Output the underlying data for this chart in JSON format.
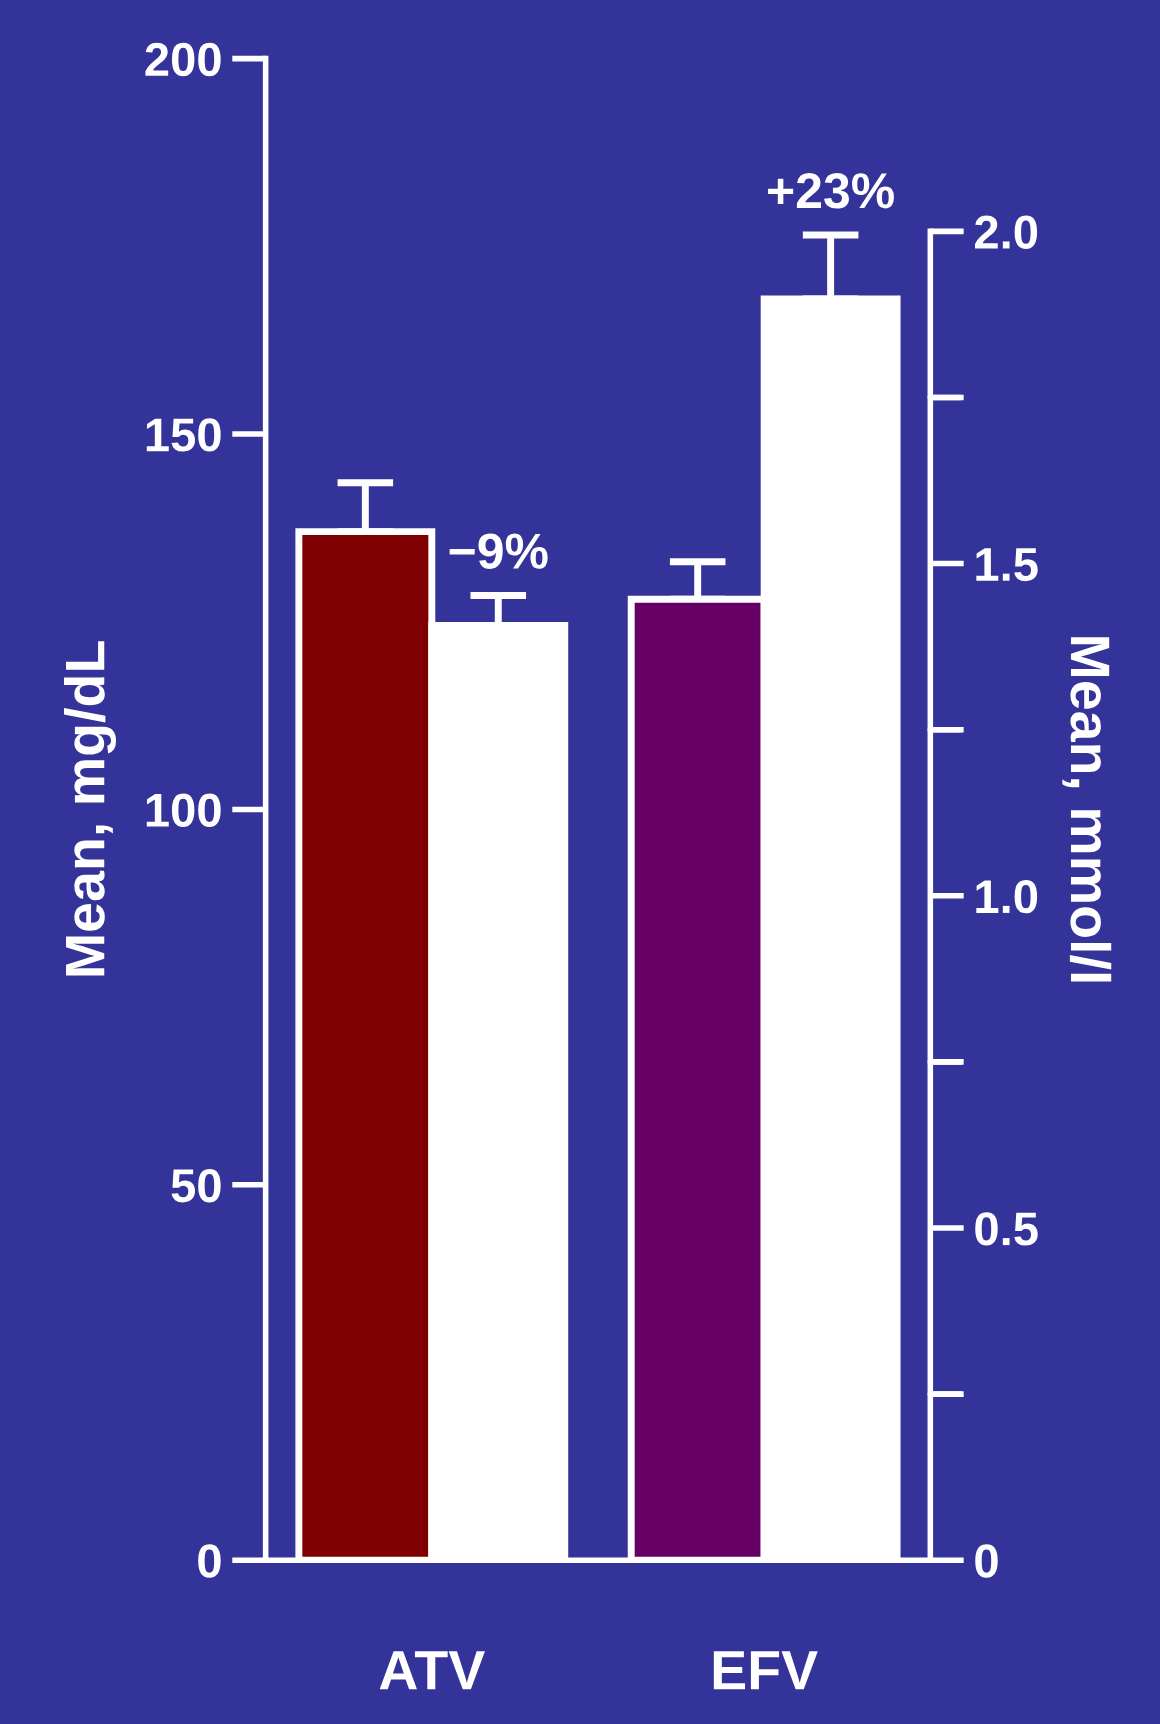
{
  "chart_data": {
    "type": "bar",
    "ylabel": "Mean, mg/dL",
    "y2label": "Mean, mmol/l",
    "categories": [
      "ATV",
      "EFV"
    ],
    "series": [
      {
        "colors": [
          "#7f0000",
          "#660066"
        ],
        "values": [
          137,
          128
        ],
        "errors": [
          6.5,
          5
        ]
      },
      {
        "colors": [
          "#ffffff",
          "#ffffff"
        ],
        "values": [
          124.5,
          168
        ],
        "errors": [
          4,
          8.5
        ]
      }
    ],
    "ylim": [
      0,
      200
    ],
    "yticks": [
      0,
      50,
      100,
      150,
      200
    ],
    "y2lim": [
      0,
      2.26
    ],
    "y2ticks": [
      0,
      {
        "value": 0.25,
        "label": null
      },
      0.5,
      {
        "value": 0.75,
        "label": null
      },
      {
        "value": 1.0,
        "label": "1.0"
      },
      {
        "value": 1.25,
        "label": null
      },
      1.5,
      {
        "value": 1.75,
        "label": null
      },
      {
        "value": 2.0,
        "label": "2.0"
      }
    ],
    "annotations": [
      {
        "text": "−9%",
        "x": "ATV",
        "y": 124.5
      },
      {
        "text": "+23%",
        "x": "EFV",
        "y": 168
      }
    ],
    "grid": false,
    "legend": false
  }
}
